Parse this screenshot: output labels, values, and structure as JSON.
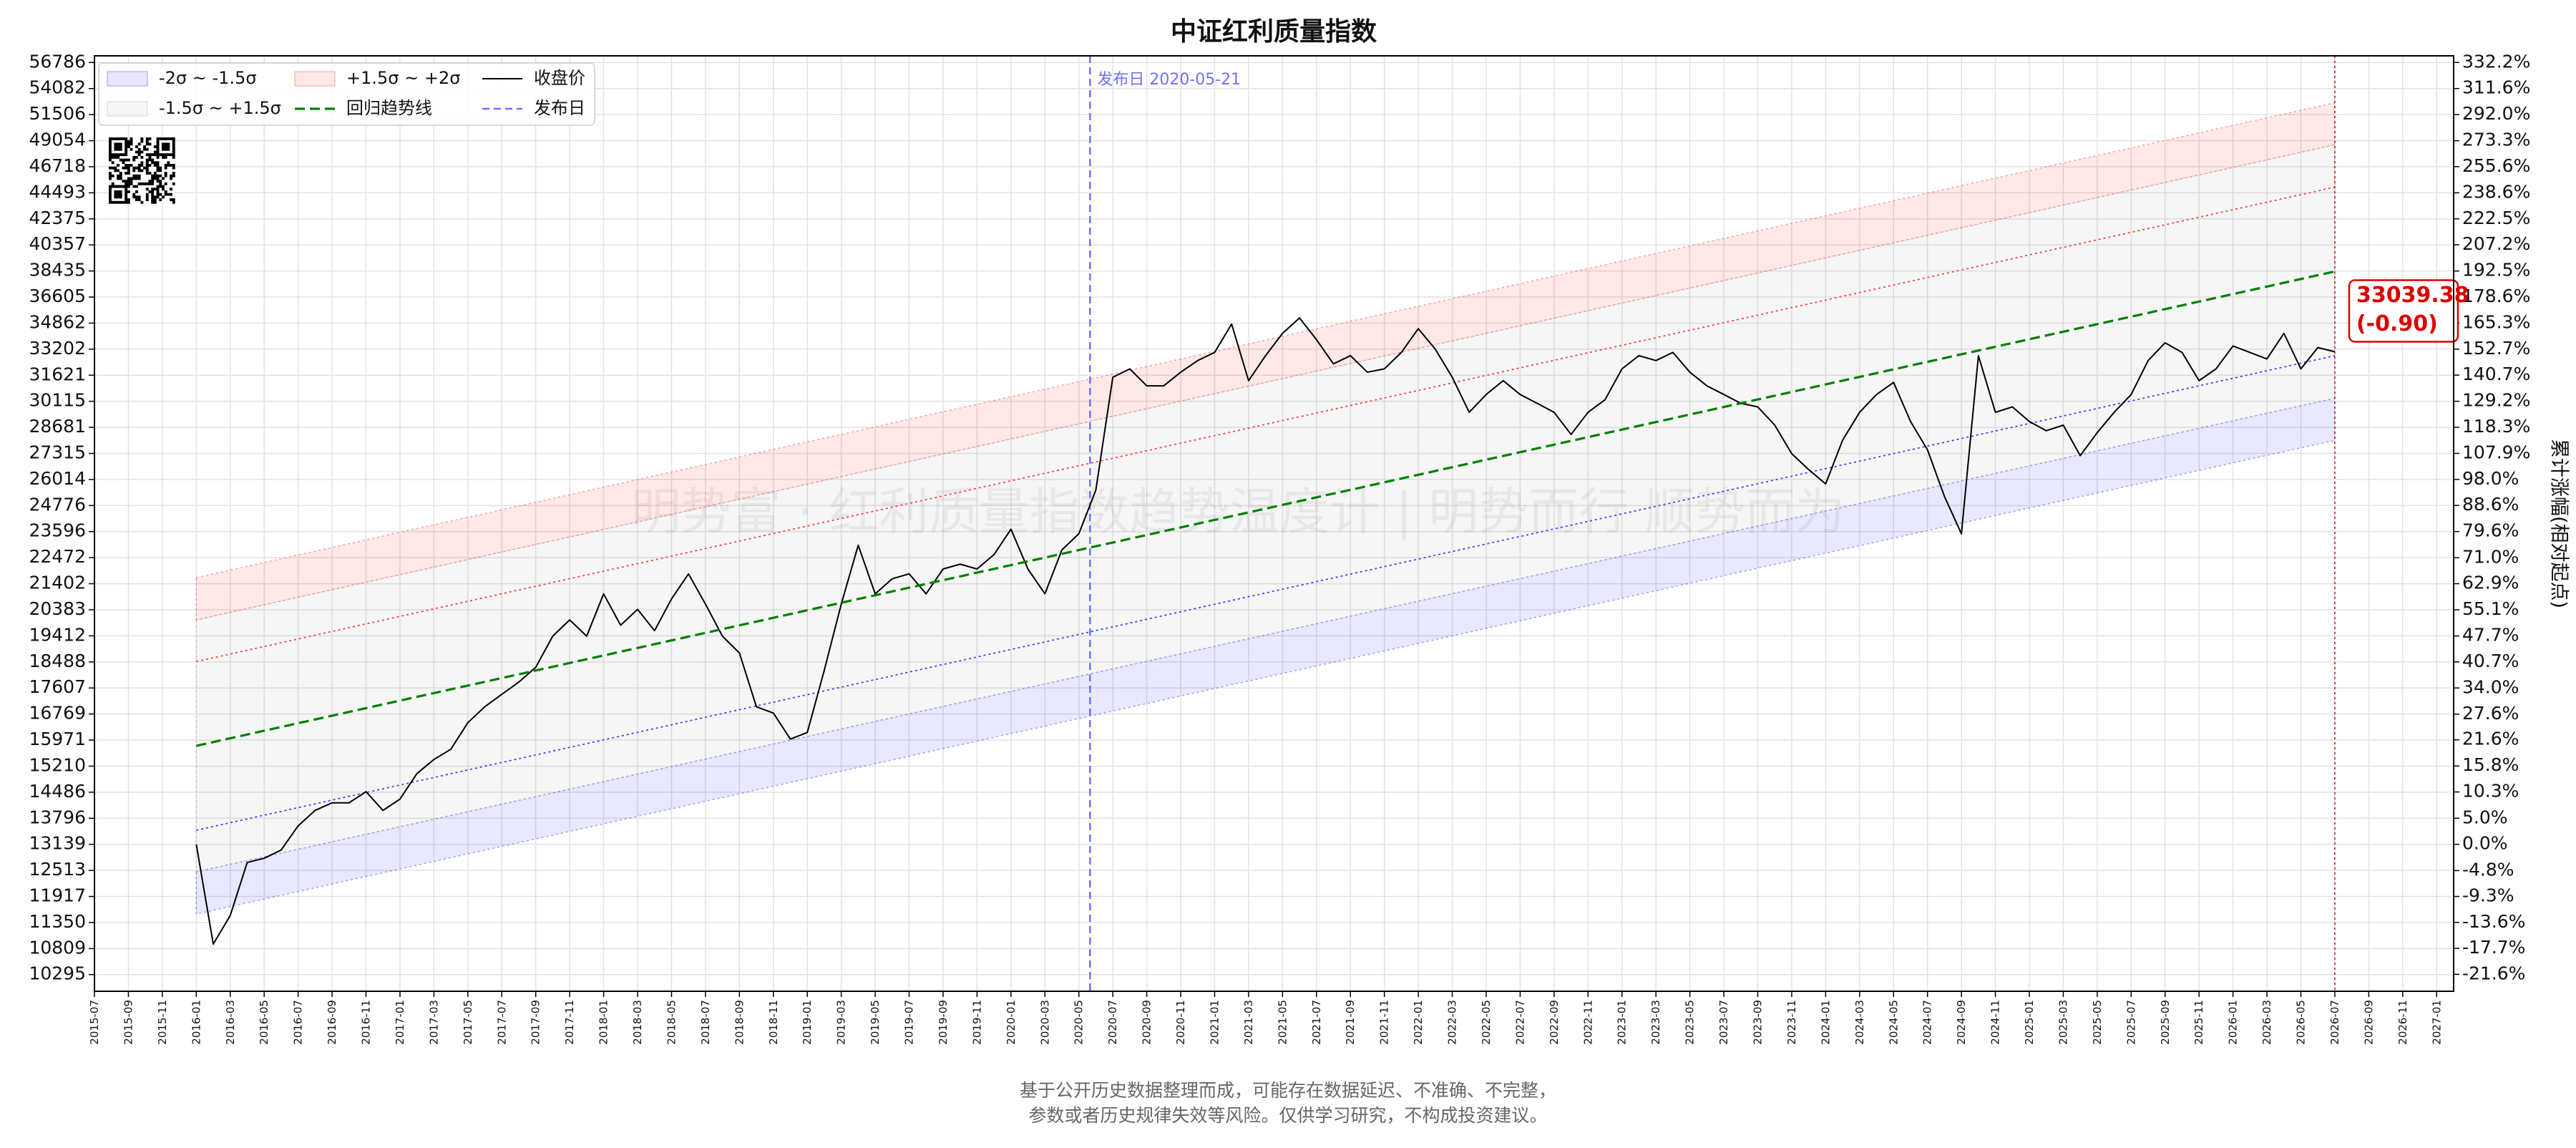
{
  "chart_data": {
    "type": "line",
    "title": "中证红利质量指数",
    "y2_label": "累计涨幅(相对起点)",
    "watermark": "明势富 · 红利质量指数趋势温度计 | 明势而行 顺势而为",
    "log_y": true,
    "grid": true,
    "legend_position": "upper left",
    "xlim": [
      "2015-07",
      "2027-02"
    ],
    "xticks": [
      "2015-07",
      "2015-09",
      "2015-11",
      "2016-01",
      "2016-03",
      "2016-05",
      "2016-07",
      "2016-09",
      "2016-11",
      "2017-01",
      "2017-03",
      "2017-05",
      "2017-07",
      "2017-09",
      "2017-11",
      "2018-01",
      "2018-03",
      "2018-05",
      "2018-07",
      "2018-09",
      "2018-11",
      "2019-01",
      "2019-03",
      "2019-05",
      "2019-07",
      "2019-09",
      "2019-11",
      "2020-01",
      "2020-03",
      "2020-05",
      "2020-07",
      "2020-09",
      "2020-11",
      "2021-01",
      "2021-03",
      "2021-05",
      "2021-07",
      "2021-09",
      "2021-11",
      "2022-01",
      "2022-03",
      "2022-05",
      "2022-07",
      "2022-09",
      "2022-11",
      "2023-01",
      "2023-03",
      "2023-05",
      "2023-07",
      "2023-09",
      "2023-11",
      "2024-01",
      "2024-03",
      "2024-05",
      "2024-07",
      "2024-09",
      "2024-11",
      "2025-01",
      "2025-03",
      "2025-05",
      "2025-07",
      "2025-09",
      "2025-11",
      "2026-01",
      "2026-03",
      "2026-05",
      "2026-07",
      "2026-09",
      "2026-11",
      "2027-01"
    ],
    "ylim": [
      9979,
      57500
    ],
    "yticks": [
      10295,
      10809,
      11350,
      11917,
      12513,
      13139,
      13796,
      14486,
      15210,
      15971,
      16769,
      17607,
      18488,
      19412,
      20383,
      21402,
      22472,
      23596,
      24776,
      26014,
      27315,
      28681,
      30115,
      31621,
      33202,
      34862,
      36605,
      38435,
      40357,
      42375,
      44493,
      46718,
      49054,
      51506,
      54082,
      56786
    ],
    "y2lim": [
      -24.05,
      337.6
    ],
    "y2ticks": [
      {
        "value": -21.6,
        "label": "-21.6%"
      },
      {
        "value": -17.7,
        "label": "-17.7%"
      },
      {
        "value": -13.6,
        "label": "-13.6%"
      },
      {
        "value": -9.3,
        "label": "-9.3%"
      },
      {
        "value": -4.8,
        "label": "-4.8%"
      },
      {
        "value": 0,
        "label": "0.0%"
      },
      {
        "value": 5,
        "label": "5.0%"
      },
      {
        "value": 10.3,
        "label": "10.3%"
      },
      {
        "value": 15.8,
        "label": "15.8%"
      },
      {
        "value": 21.6,
        "label": "21.6%"
      },
      {
        "value": 27.6,
        "label": "27.6%"
      },
      {
        "value": 34,
        "label": "34.0%"
      },
      {
        "value": 40.7,
        "label": "40.7%"
      },
      {
        "value": 47.7,
        "label": "47.7%"
      },
      {
        "value": 55.1,
        "label": "55.1%"
      },
      {
        "value": 62.9,
        "label": "62.9%"
      },
      {
        "value": 71,
        "label": "71.0%"
      },
      {
        "value": 79.6,
        "label": "79.6%"
      },
      {
        "value": 88.6,
        "label": "88.6%"
      },
      {
        "value": 98,
        "label": "98.0%"
      },
      {
        "value": 107.9,
        "label": "107.9%"
      },
      {
        "value": 118.3,
        "label": "118.3%"
      },
      {
        "value": 129.2,
        "label": "129.2%"
      },
      {
        "value": 140.7,
        "label": "140.7%"
      },
      {
        "value": 152.7,
        "label": "152.7%"
      },
      {
        "value": 165.3,
        "label": "165.3%"
      },
      {
        "value": 178.6,
        "label": "178.6%"
      },
      {
        "value": 192.5,
        "label": "192.5%"
      },
      {
        "value": 207.2,
        "label": "207.2%"
      },
      {
        "value": 222.5,
        "label": "222.5%"
      },
      {
        "value": 238.6,
        "label": "238.6%"
      },
      {
        "value": 255.6,
        "label": "255.6%"
      },
      {
        "value": 273.3,
        "label": "273.3%"
      },
      {
        "value": 292,
        "label": "292.0%"
      },
      {
        "value": 311.6,
        "label": "311.6%"
      },
      {
        "value": 332.2,
        "label": "332.2%"
      }
    ],
    "bands": [
      {
        "name": "-2σ ~ -1.5σ",
        "color": "#0000ff",
        "opacity": 0.09,
        "x": [
          "2016-01",
          "2026-07"
        ],
        "lower": [
          11530,
          27990
        ],
        "upper": [
          12480,
          30290
        ]
      },
      {
        "name": "-1.5σ ~ +1.5σ",
        "color": "#999999",
        "opacity": 0.09,
        "x": [
          "2016-01",
          "2026-07"
        ],
        "lower": [
          12480,
          30290
        ],
        "upper": [
          20000,
          48680
        ]
      },
      {
        "name": "+1.5σ ~ +2σ",
        "color": "#ff0000",
        "opacity": 0.09,
        "x": [
          "2016-01",
          "2026-07"
        ],
        "lower": [
          20000,
          48680
        ],
        "upper": [
          21650,
          52670
        ]
      }
    ],
    "reference_lines": [
      {
        "color": "#ff4444",
        "linestyle": "dotted",
        "x": [
          "2016-01",
          "2026-07"
        ],
        "values": [
          18500,
          44970
        ]
      },
      {
        "color": "#4444ff",
        "linestyle": "dotted",
        "x": [
          "2016-01",
          "2026-07"
        ],
        "values": [
          13490,
          32800
        ]
      }
    ],
    "series": [
      {
        "name": "收盘价",
        "color": "#000000",
        "linestyle": "solid",
        "x": [
          "2016-01",
          "2016-02",
          "2016-03",
          "2016-04",
          "2016-05",
          "2016-06",
          "2016-07",
          "2016-08",
          "2016-09",
          "2016-10",
          "2016-11",
          "2016-12",
          "2017-01",
          "2017-02",
          "2017-03",
          "2017-04",
          "2017-05",
          "2017-06",
          "2017-07",
          "2017-08",
          "2017-09",
          "2017-10",
          "2017-11",
          "2017-12",
          "2018-01",
          "2018-02",
          "2018-03",
          "2018-04",
          "2018-05",
          "2018-06",
          "2018-07",
          "2018-08",
          "2018-09",
          "2018-10",
          "2018-11",
          "2018-12",
          "2019-01",
          "2019-02",
          "2019-03",
          "2019-04",
          "2019-05",
          "2019-06",
          "2019-07",
          "2019-08",
          "2019-09",
          "2019-10",
          "2019-11",
          "2019-12",
          "2020-01",
          "2020-02",
          "2020-03",
          "2020-04",
          "2020-05",
          "2020-06",
          "2020-07",
          "2020-08",
          "2020-09",
          "2020-10",
          "2020-11",
          "2020-12",
          "2021-01",
          "2021-02",
          "2021-03",
          "2021-04",
          "2021-05",
          "2021-06",
          "2021-07",
          "2021-08",
          "2021-09",
          "2021-10",
          "2021-11",
          "2021-12",
          "2022-01",
          "2022-02",
          "2022-03",
          "2022-04",
          "2022-05",
          "2022-06",
          "2022-07",
          "2022-08",
          "2022-09",
          "2022-10",
          "2022-11",
          "2022-12",
          "2023-01",
          "2023-02",
          "2023-03",
          "2023-04",
          "2023-05",
          "2023-06",
          "2023-07",
          "2023-08",
          "2023-09",
          "2023-10",
          "2023-11",
          "2023-12",
          "2024-01",
          "2024-02",
          "2024-03",
          "2024-04",
          "2024-05",
          "2024-06",
          "2024-07",
          "2024-08",
          "2024-09",
          "2024-10",
          "2024-11",
          "2024-12",
          "2025-01",
          "2025-02",
          "2025-03",
          "2025-04",
          "2025-05",
          "2025-06",
          "2025-07",
          "2025-08",
          "2025-09",
          "2025-10",
          "2025-11",
          "2025-12",
          "2026-01",
          "2026-02",
          "2026-03",
          "2026-04",
          "2026-05",
          "2026-06",
          "2026-07"
        ],
        "values": [
          13139,
          10900,
          11500,
          12700,
          12800,
          13000,
          13600,
          14000,
          14200,
          14200,
          14500,
          14000,
          14300,
          15000,
          15400,
          15700,
          16500,
          17000,
          17400,
          17800,
          18300,
          19400,
          20000,
          19400,
          21000,
          19800,
          20400,
          19600,
          20800,
          21800,
          20600,
          19400,
          18800,
          17000,
          16800,
          16000,
          16200,
          18200,
          20600,
          23000,
          21000,
          21600,
          21800,
          21000,
          22000,
          22200,
          22000,
          22600,
          23700,
          22000,
          21000,
          22800,
          23500,
          25500,
          31500,
          32000,
          31000,
          31000,
          31800,
          32500,
          33000,
          34800,
          31300,
          32800,
          34200,
          35200,
          33800,
          32300,
          32800,
          31800,
          32000,
          33000,
          34500,
          33200,
          31500,
          29500,
          30500,
          31300,
          30500,
          30000,
          29500,
          28300,
          29500,
          30200,
          32000,
          32800,
          32500,
          33000,
          31800,
          31000,
          30500,
          30000,
          29800,
          28800,
          27300,
          26500,
          25800,
          28000,
          29500,
          30500,
          31200,
          29000,
          27500,
          25200,
          23500,
          32800,
          29500,
          29800,
          29000,
          28500,
          28800,
          27200,
          28400,
          29500,
          30500,
          32500,
          33600,
          33000,
          31300,
          32000,
          33400,
          33000,
          32600,
          34200,
          32000,
          33300,
          33039.38
        ]
      },
      {
        "name": "回归趋势线",
        "color": "#008000",
        "linestyle": "dashed",
        "x": [
          "2016-01",
          "2026-07"
        ],
        "values": [
          15800,
          38400
        ]
      }
    ],
    "release_line": {
      "name": "发布日",
      "label": "发布日 2020-05-21",
      "x": "2020-05-21",
      "color": "#7070ff"
    },
    "end_label": {
      "change": {
        "value": -0.9,
        "label": "(-0.90)"
      },
      "color": "#dd0000"
    }
  },
  "footer": {
    "lines": [
      "基于公开历史数据整理而成，可能存在数据延迟、不准确、不完整，",
      "参数或者历史规律失效等风险。仅供学习研究，不构成投资建议。"
    ]
  }
}
